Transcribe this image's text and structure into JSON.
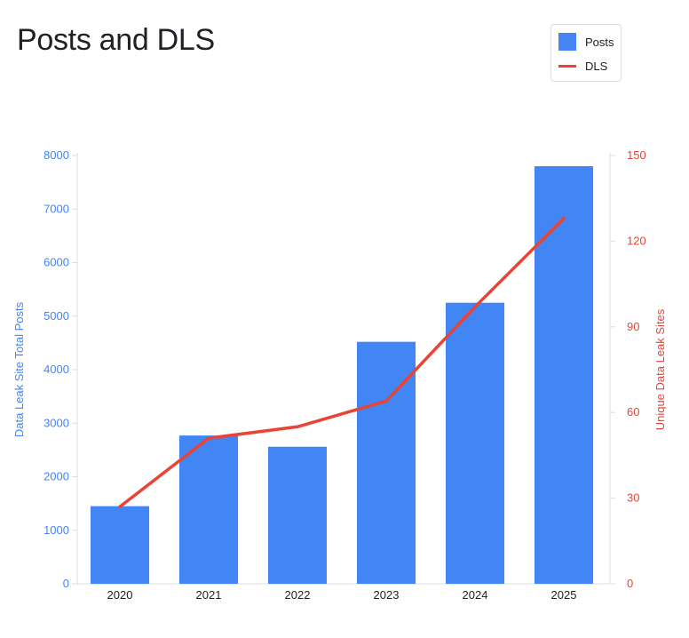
{
  "title": "Posts and DLS",
  "legend": [
    {
      "label": "Posts",
      "color": "#4285f4",
      "kind": "bar"
    },
    {
      "label": "DLS",
      "color": "#ea4335",
      "kind": "line"
    }
  ],
  "colors": {
    "posts": "#4285f4",
    "dls": "#ea4335",
    "axis": "#dadce0",
    "tick_text": "#202124"
  },
  "chart_data": {
    "type": "bar",
    "title": "Posts and DLS",
    "categories": [
      "2020",
      "2021",
      "2022",
      "2023",
      "2024",
      "2025"
    ],
    "series": [
      {
        "name": "Posts",
        "type": "bar",
        "axis": "left",
        "values": [
          1450,
          2770,
          2560,
          4520,
          5250,
          7800
        ]
      },
      {
        "name": "DLS",
        "type": "line",
        "axis": "right",
        "values": [
          27,
          51,
          55,
          64,
          97,
          128
        ]
      }
    ],
    "y_left": {
      "label": "Data Leak Site Total Posts",
      "range": [
        0,
        8000
      ],
      "ticks": [
        0,
        1000,
        2000,
        3000,
        4000,
        5000,
        6000,
        7000,
        8000
      ]
    },
    "y_right": {
      "label": "Unique Data Leak Sites",
      "range": [
        0,
        150
      ],
      "ticks": [
        0,
        30,
        60,
        90,
        120,
        150
      ]
    },
    "grid": false,
    "legend_position": "top-right"
  }
}
